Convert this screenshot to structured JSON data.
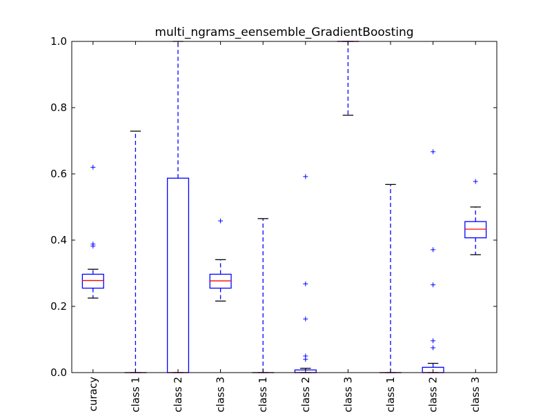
{
  "chart_data": {
    "type": "box",
    "title": "multi_ngrams_eensemble_GradientBoosting",
    "xlabel": "",
    "ylabel": "",
    "ylim": [
      0.0,
      1.0
    ],
    "yticks": [
      "0.0",
      "0.2",
      "0.4",
      "0.6",
      "0.8",
      "1.0"
    ],
    "grid": false,
    "categories": [
      "curacy",
      "class 1",
      "class 2",
      "class 3",
      "class 1",
      "class 2",
      "class 3",
      "class 1",
      "class 2",
      "class 3"
    ],
    "boxes": [
      {
        "whisker_low": 0.225,
        "q1": 0.255,
        "median": 0.278,
        "q3": 0.297,
        "whisker_high": 0.312,
        "fliers": [
          0.62,
          0.388,
          0.382
        ]
      },
      {
        "whisker_low": 0.0,
        "q1": 0.0,
        "median": 0.0,
        "q3": 0.0,
        "whisker_high": 0.729,
        "fliers": []
      },
      {
        "whisker_low": 0.0,
        "q1": 0.0,
        "median": 0.0,
        "q3": 0.587,
        "whisker_high": 1.0,
        "fliers": []
      },
      {
        "whisker_low": 0.216,
        "q1": 0.255,
        "median": 0.277,
        "q3": 0.297,
        "whisker_high": 0.341,
        "fliers": [
          0.458
        ]
      },
      {
        "whisker_low": 0.0,
        "q1": 0.0,
        "median": 0.0,
        "q3": 0.0,
        "whisker_high": 0.465,
        "fliers": []
      },
      {
        "whisker_low": 0.0,
        "q1": 0.0,
        "median": 0.0,
        "q3": 0.008,
        "whisker_high": 0.013,
        "fliers": [
          0.592,
          0.268,
          0.162,
          0.05,
          0.04
        ]
      },
      {
        "whisker_low": 0.777,
        "q1": 1.0,
        "median": 1.0,
        "q3": 1.0,
        "whisker_high": 1.0,
        "fliers": []
      },
      {
        "whisker_low": 0.0,
        "q1": 0.0,
        "median": 0.0,
        "q3": 0.0,
        "whisker_high": 0.568,
        "fliers": []
      },
      {
        "whisker_low": 0.0,
        "q1": 0.0,
        "median": 0.0,
        "q3": 0.016,
        "whisker_high": 0.028,
        "fliers": [
          0.667,
          0.371,
          0.265,
          0.096,
          0.075
        ]
      },
      {
        "whisker_low": 0.356,
        "q1": 0.407,
        "median": 0.433,
        "q3": 0.456,
        "whisker_high": 0.5,
        "fliers": [
          0.577
        ]
      }
    ],
    "colors": {
      "box": "#0000ff",
      "median": "#ff0000",
      "whisker": "#0000ff",
      "cap": "#000000",
      "flier": "#0000ff",
      "axes": "#000000"
    }
  }
}
